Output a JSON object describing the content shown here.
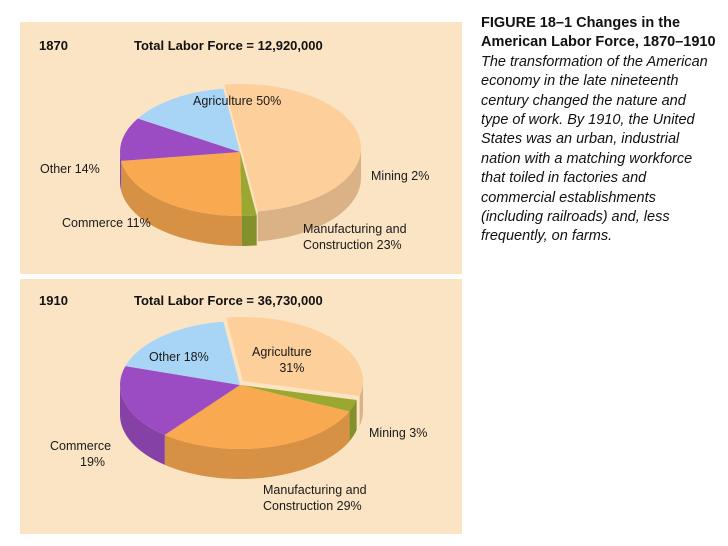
{
  "caption": {
    "title": "FIGURE 18–1 Changes in the American Labor Force, 1870–1910",
    "body": "The transformation of the American economy in the late nineteenth century changed the nature and type of work. By 1910, the United States was an urban, industrial nation with a matching workforce that toiled in factories and commercial establishments (including railroads) and, less frequently, on farms."
  },
  "colors": {
    "background": "#fbe4c4",
    "agriculture": "#fdcf9b",
    "mining": "#9aa832",
    "manufacturing": "#f9a94f",
    "commerce": "#9c4cc2",
    "other": "#a8d4f6"
  },
  "chart_data": [
    {
      "type": "pie",
      "year": "1870",
      "title": "Total Labor Force = 12,920,000",
      "total_labor_force": 12920000,
      "slices": [
        {
          "key": "agriculture",
          "label": "Agriculture 50%",
          "value": 50
        },
        {
          "key": "mining",
          "label": "Mining 2%",
          "value": 2
        },
        {
          "key": "manufacturing",
          "label": "Manufacturing and",
          "label2": "Construction 23%",
          "value": 23
        },
        {
          "key": "commerce",
          "label": "Commerce 11%",
          "value": 11
        },
        {
          "key": "other",
          "label": "Other 14%",
          "value": 14
        }
      ]
    },
    {
      "type": "pie",
      "year": "1910",
      "title": "Total Labor Force = 36,730,000",
      "total_labor_force": 36730000,
      "slices": [
        {
          "key": "agriculture",
          "label": "Agriculture",
          "label2": "31%",
          "value": 31
        },
        {
          "key": "mining",
          "label": "Mining 3%",
          "value": 3
        },
        {
          "key": "manufacturing",
          "label": "Manufacturing and",
          "label2": "Construction 29%",
          "value": 29
        },
        {
          "key": "commerce",
          "label": "Commerce",
          "label2": "19%",
          "value": 19
        },
        {
          "key": "other",
          "label": "Other 18%",
          "value": 18
        }
      ]
    }
  ]
}
